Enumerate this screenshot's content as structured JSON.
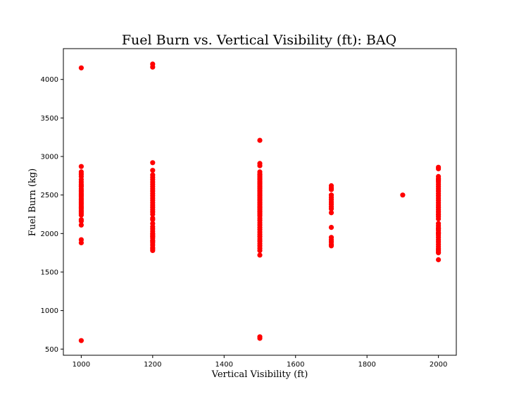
{
  "chart_data": {
    "type": "scatter",
    "title": "Fuel Burn vs. Vertical Visibility (ft): BAQ",
    "xlabel": "Vertical Visibility (ft)",
    "ylabel": "Fuel Burn (kg)",
    "xlim": [
      950,
      2050
    ],
    "ylim": [
      420,
      4400
    ],
    "xticks": [
      1000,
      1200,
      1400,
      1600,
      1800,
      2000
    ],
    "yticks": [
      500,
      1000,
      1500,
      2000,
      2500,
      3000,
      3500,
      4000
    ],
    "grid": false,
    "marker_color": "#ff0000",
    "series": [
      {
        "x": [
          1000,
          1000,
          1000,
          1000,
          1000,
          1000,
          1000,
          1000,
          1000,
          1000,
          1000,
          1000,
          1000,
          1000,
          1000,
          1000,
          1000,
          1000,
          1000,
          1000,
          1000,
          1000,
          1000,
          1000,
          1000,
          1000,
          1000,
          1000,
          1000,
          1000,
          1000,
          1000,
          1000,
          1000,
          1200,
          1200,
          1200,
          1200,
          1200,
          1200,
          1200,
          1200,
          1200,
          1200,
          1200,
          1200,
          1200,
          1200,
          1200,
          1200,
          1200,
          1200,
          1200,
          1200,
          1200,
          1200,
          1200,
          1200,
          1200,
          1200,
          1200,
          1200,
          1200,
          1200,
          1200,
          1200,
          1200,
          1200,
          1200,
          1200,
          1200,
          1200,
          1200,
          1200,
          1500,
          1500,
          1500,
          1500,
          1500,
          1500,
          1500,
          1500,
          1500,
          1500,
          1500,
          1500,
          1500,
          1500,
          1500,
          1500,
          1500,
          1500,
          1500,
          1500,
          1500,
          1500,
          1500,
          1500,
          1500,
          1500,
          1500,
          1500,
          1500,
          1500,
          1500,
          1500,
          1500,
          1500,
          1500,
          1500,
          1500,
          1500,
          1500,
          1500,
          1500,
          1500,
          1500,
          1500,
          1500,
          1500,
          1500,
          1500,
          1500,
          1500,
          1500,
          1500,
          1500,
          1500,
          1500,
          1500,
          1500,
          1500,
          1500,
          1700,
          1700,
          1700,
          1700,
          1700,
          1700,
          1700,
          1700,
          1700,
          1700,
          1700,
          1700,
          1700,
          1700,
          1700,
          1700,
          1700,
          1900,
          2000,
          2000,
          2000,
          2000,
          2000,
          2000,
          2000,
          2000,
          2000,
          2000,
          2000,
          2000,
          2000,
          2000,
          2000,
          2000,
          2000,
          2000,
          2000,
          2000,
          2000,
          2000,
          2000,
          2000,
          2000,
          2000,
          2000,
          2000,
          2000,
          2000,
          2000,
          2000,
          2000,
          2000,
          2000,
          2000,
          2000,
          2000,
          2000,
          2000,
          2000
        ],
        "y": [
          4150,
          2870,
          2800,
          2770,
          2740,
          2700,
          2670,
          2640,
          2610,
          2580,
          2560,
          2540,
          2520,
          2500,
          2480,
          2460,
          2440,
          2420,
          2400,
          2380,
          2360,
          2340,
          2320,
          2300,
          2280,
          2260,
          2240,
          2180,
          2160,
          2110,
          1920,
          1880,
          610,
          2620,
          4200,
          4160,
          2920,
          2820,
          2760,
          2730,
          2700,
          2670,
          2640,
          2610,
          2580,
          2550,
          2520,
          2490,
          2460,
          2430,
          2400,
          2370,
          2340,
          2310,
          2280,
          2180,
          2130,
          2090,
          2060,
          2030,
          2000,
          1970,
          1940,
          1910,
          1880,
          1850,
          1820,
          1800,
          1780,
          2250,
          2200,
          1990,
          1960,
          1900,
          3210,
          2910,
          2880,
          2800,
          2770,
          2740,
          2710,
          2680,
          2650,
          2620,
          2590,
          2560,
          2530,
          2500,
          2470,
          2440,
          2410,
          2380,
          2350,
          2320,
          2290,
          2260,
          2230,
          2200,
          2170,
          2140,
          2110,
          2080,
          2050,
          2020,
          1990,
          1960,
          1930,
          1900,
          1870,
          1840,
          1810,
          1780,
          1720,
          660,
          640,
          2760,
          2730,
          2700,
          2670,
          2640,
          2610,
          2580,
          2550,
          2520,
          2490,
          2460,
          2430,
          2400,
          2370,
          2340,
          2310,
          2280,
          2250,
          2620,
          2590,
          2570,
          2500,
          2470,
          2440,
          2410,
          2380,
          2350,
          2320,
          2270,
          2080,
          1950,
          1920,
          1890,
          1860,
          1840,
          2500,
          2860,
          2840,
          2740,
          2710,
          2690,
          2670,
          2640,
          2610,
          2580,
          2550,
          2520,
          2490,
          2460,
          2430,
          2400,
          2370,
          2340,
          2310,
          2280,
          2250,
          2220,
          2190,
          2130,
          2100,
          2070,
          2040,
          2010,
          1980,
          1950,
          1920,
          1890,
          1860,
          1830,
          1800,
          1780,
          1760,
          1750,
          1660,
          2000,
          2060,
          2250
        ]
      }
    ]
  }
}
